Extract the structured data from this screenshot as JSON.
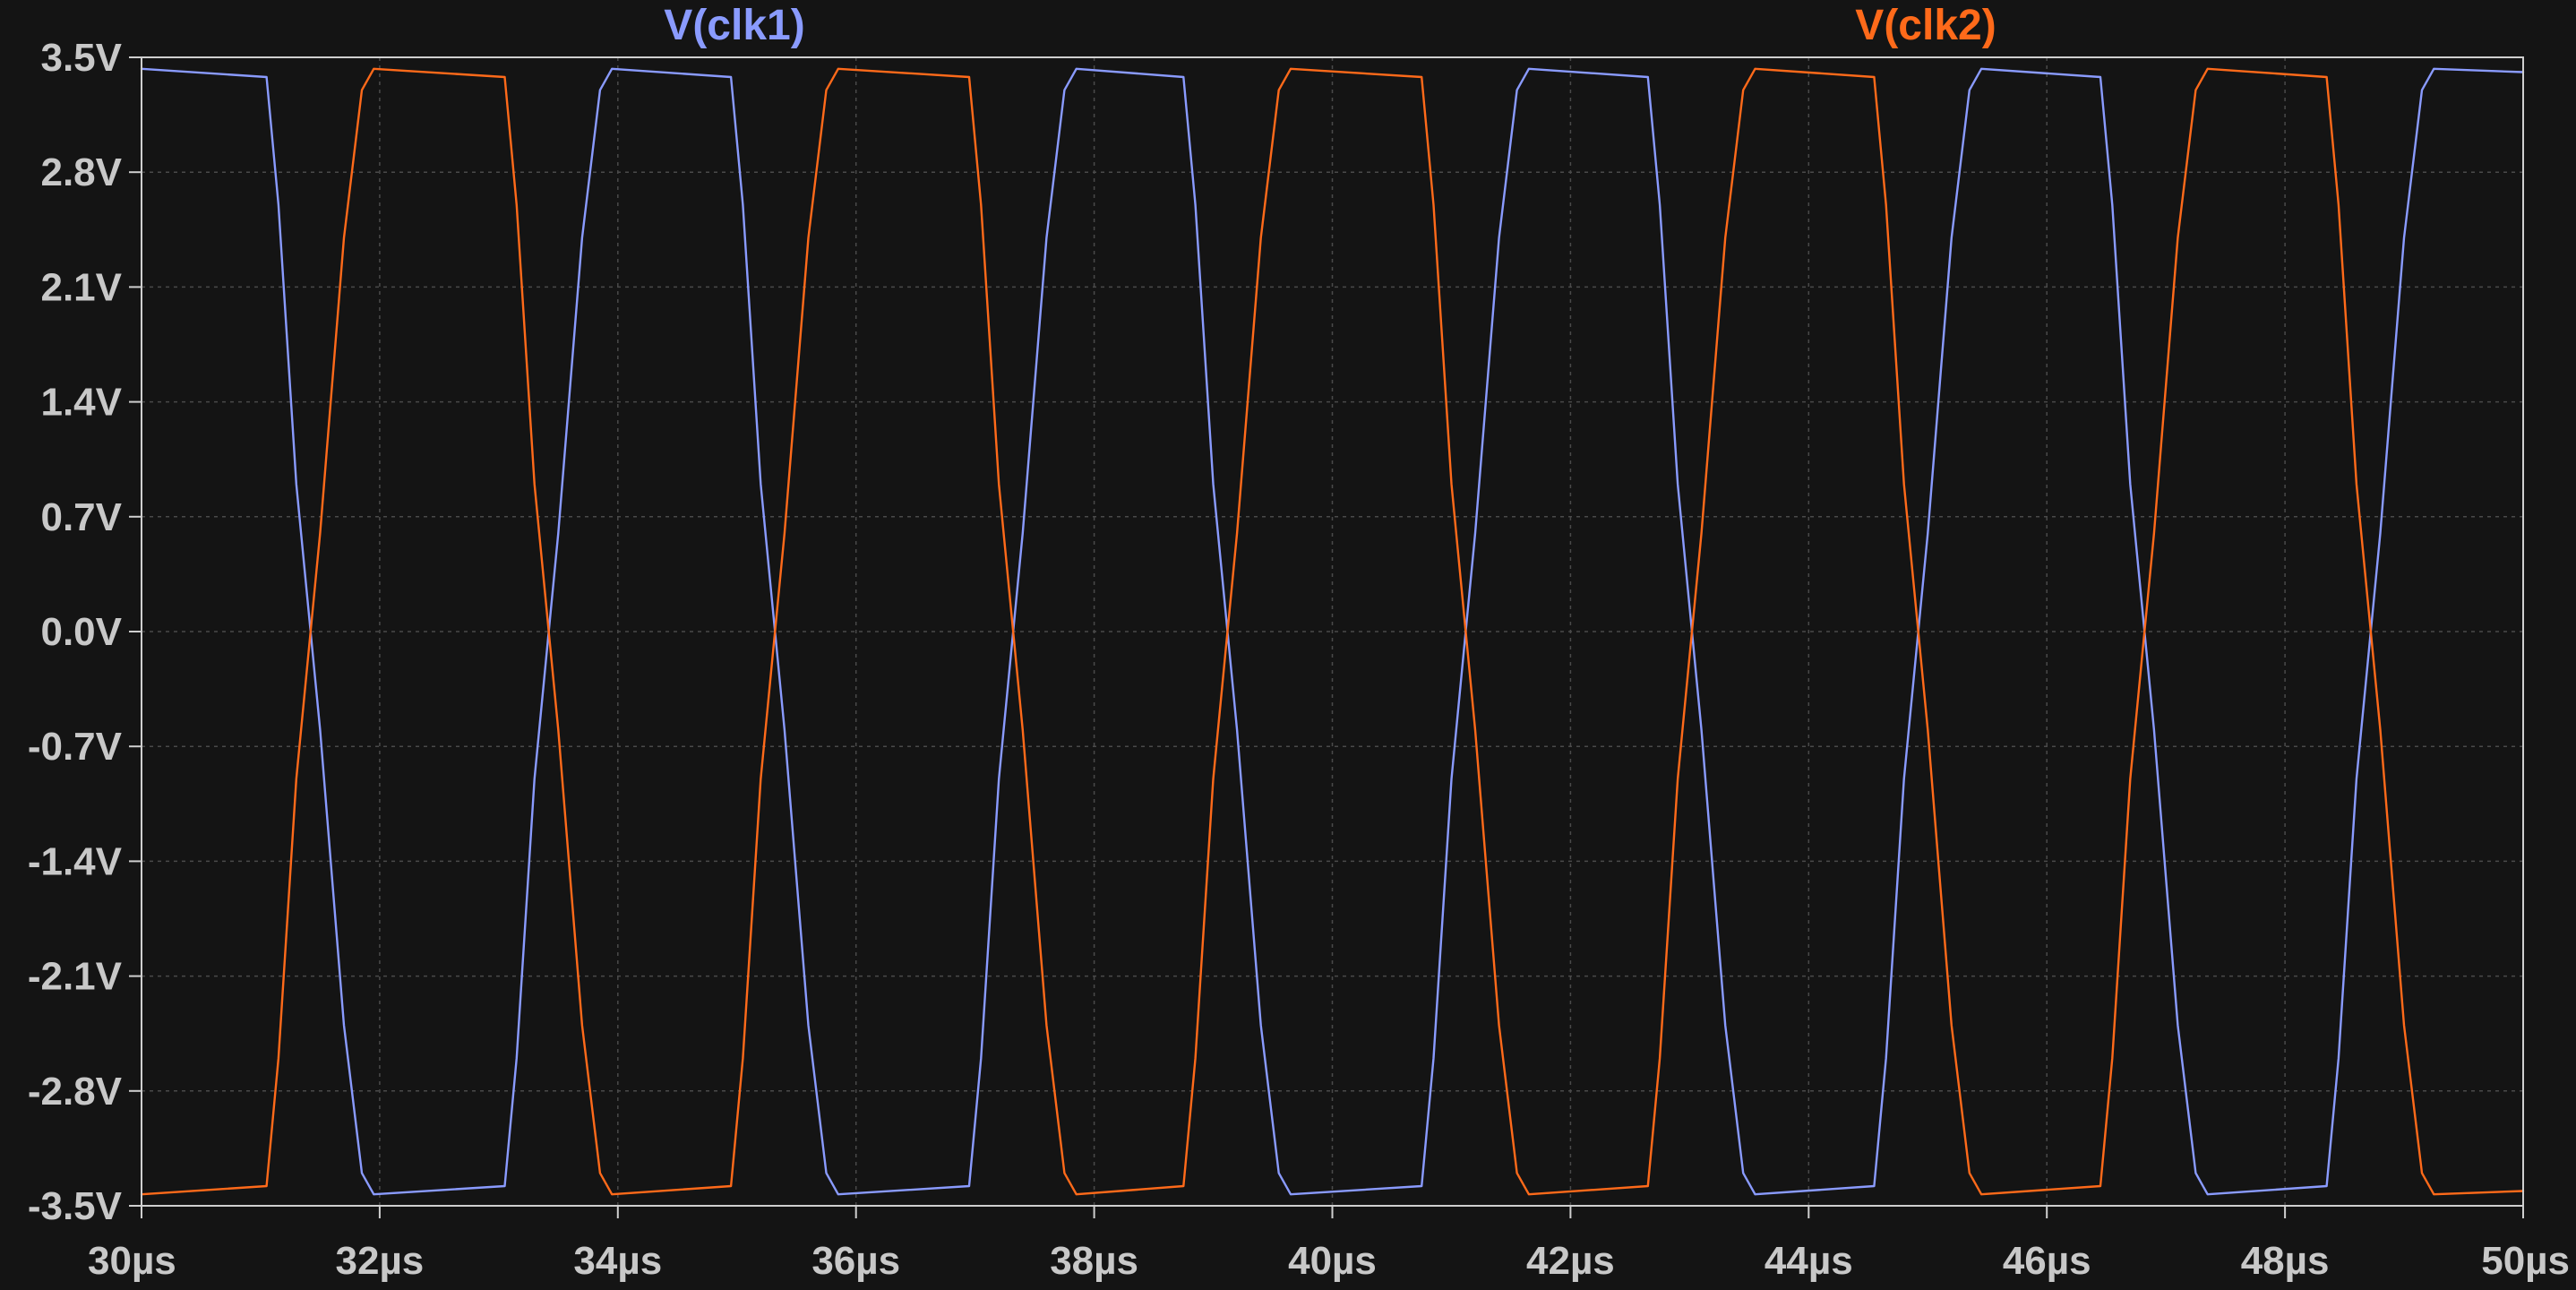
{
  "chart_data": {
    "type": "line",
    "title": "",
    "xlabel": "",
    "ylabel": "",
    "xlim": [
      30,
      50
    ],
    "ylim": [
      -3.5,
      3.5
    ],
    "x_unit": "µs",
    "y_unit": "V",
    "grid": true,
    "x_ticks": [
      30,
      32,
      34,
      36,
      38,
      40,
      42,
      44,
      46,
      48,
      50
    ],
    "x_tick_labels": [
      "30µs",
      "32µs",
      "34µs",
      "36µs",
      "38µs",
      "40µs",
      "42µs",
      "44µs",
      "46µs",
      "48µs",
      "50µs"
    ],
    "y_ticks": [
      3.5,
      2.8,
      2.1,
      1.4,
      0.7,
      0.0,
      -0.7,
      -1.4,
      -2.1,
      -2.8,
      -3.5
    ],
    "y_tick_labels": [
      "3.5V",
      "2.8V",
      "2.1V",
      "1.4V",
      "0.7V",
      "0.0V",
      "-0.7V",
      "-1.4V",
      "-2.1V",
      "-2.8V",
      "-3.5V"
    ],
    "series": [
      {
        "name": "V(clk1)",
        "color": "#8a9bff",
        "x": [
          30.0,
          31.05,
          31.15,
          31.3,
          31.5,
          31.7,
          31.85,
          31.95,
          33.05,
          33.15,
          33.3,
          33.5,
          33.7,
          33.85,
          33.95,
          34.95,
          35.05,
          35.2,
          35.4,
          35.6,
          35.75,
          35.85,
          36.95,
          37.05,
          37.2,
          37.4,
          37.6,
          37.75,
          37.85,
          38.75,
          38.85,
          39.0,
          39.2,
          39.4,
          39.55,
          39.65,
          40.75,
          40.85,
          41.0,
          41.2,
          41.4,
          41.55,
          41.65,
          42.65,
          42.75,
          42.9,
          43.1,
          43.3,
          43.45,
          43.55,
          44.55,
          44.65,
          44.8,
          45.0,
          45.2,
          45.35,
          45.45,
          46.45,
          46.55,
          46.7,
          46.9,
          47.1,
          47.25,
          47.35,
          48.35,
          48.45,
          48.6,
          48.8,
          49.0,
          49.15,
          49.25,
          50.0
        ],
        "y": [
          3.43,
          3.38,
          2.6,
          0.9,
          -0.6,
          -2.4,
          -3.3,
          -3.43,
          -3.38,
          -2.6,
          -0.9,
          0.6,
          2.4,
          3.3,
          3.43,
          3.38,
          2.6,
          0.9,
          -0.6,
          -2.4,
          -3.3,
          -3.43,
          -3.38,
          -2.6,
          -0.9,
          0.6,
          2.4,
          3.3,
          3.43,
          3.38,
          2.6,
          0.9,
          -0.6,
          -2.4,
          -3.3,
          -3.43,
          -3.38,
          -2.6,
          -0.9,
          0.6,
          2.4,
          3.3,
          3.43,
          3.38,
          2.6,
          0.9,
          -0.6,
          -2.4,
          -3.3,
          -3.43,
          -3.38,
          -2.6,
          -0.9,
          0.6,
          2.4,
          3.3,
          3.43,
          3.38,
          2.6,
          0.9,
          -0.6,
          -2.4,
          -3.3,
          -3.43,
          -3.38,
          -2.6,
          -0.9,
          0.6,
          2.4,
          3.3,
          3.43,
          3.41
        ]
      },
      {
        "name": "V(clk2)",
        "color": "#ff6a1a",
        "x": [
          30.0,
          31.05,
          31.15,
          31.3,
          31.5,
          31.7,
          31.85,
          31.95,
          33.05,
          33.15,
          33.3,
          33.5,
          33.7,
          33.85,
          33.95,
          34.95,
          35.05,
          35.2,
          35.4,
          35.6,
          35.75,
          35.85,
          36.95,
          37.05,
          37.2,
          37.4,
          37.6,
          37.75,
          37.85,
          38.75,
          38.85,
          39.0,
          39.2,
          39.4,
          39.55,
          39.65,
          40.75,
          40.85,
          41.0,
          41.2,
          41.4,
          41.55,
          41.65,
          42.65,
          42.75,
          42.9,
          43.1,
          43.3,
          43.45,
          43.55,
          44.55,
          44.65,
          44.8,
          45.0,
          45.2,
          45.35,
          45.45,
          46.45,
          46.55,
          46.7,
          46.9,
          47.1,
          47.25,
          47.35,
          48.35,
          48.45,
          48.6,
          48.8,
          49.0,
          49.15,
          49.25,
          50.0
        ],
        "y": [
          -3.43,
          -3.38,
          -2.6,
          -0.9,
          0.6,
          2.4,
          3.3,
          3.43,
          3.38,
          2.6,
          0.9,
          -0.6,
          -2.4,
          -3.3,
          -3.43,
          -3.38,
          -2.6,
          -0.9,
          0.6,
          2.4,
          3.3,
          3.43,
          3.38,
          2.6,
          0.9,
          -0.6,
          -2.4,
          -3.3,
          -3.43,
          -3.38,
          -2.6,
          -0.9,
          0.6,
          2.4,
          3.3,
          3.43,
          3.38,
          2.6,
          0.9,
          -0.6,
          -2.4,
          -3.3,
          -3.43,
          -3.38,
          -2.6,
          -0.9,
          0.6,
          2.4,
          3.3,
          3.43,
          3.38,
          2.6,
          0.9,
          -0.6,
          -2.4,
          -3.3,
          -3.43,
          -3.38,
          -2.6,
          -0.9,
          0.6,
          2.4,
          3.3,
          3.43,
          3.38,
          2.6,
          0.9,
          -0.6,
          -2.4,
          -3.3,
          -3.43,
          -3.41
        ]
      }
    ],
    "legend_placement": "top",
    "colors": {
      "background": "#141414",
      "plot_background": "#141414",
      "grid": "#4a4a4a",
      "frame": "#cfcfcf",
      "tick_label": "#c8c8c8"
    }
  }
}
